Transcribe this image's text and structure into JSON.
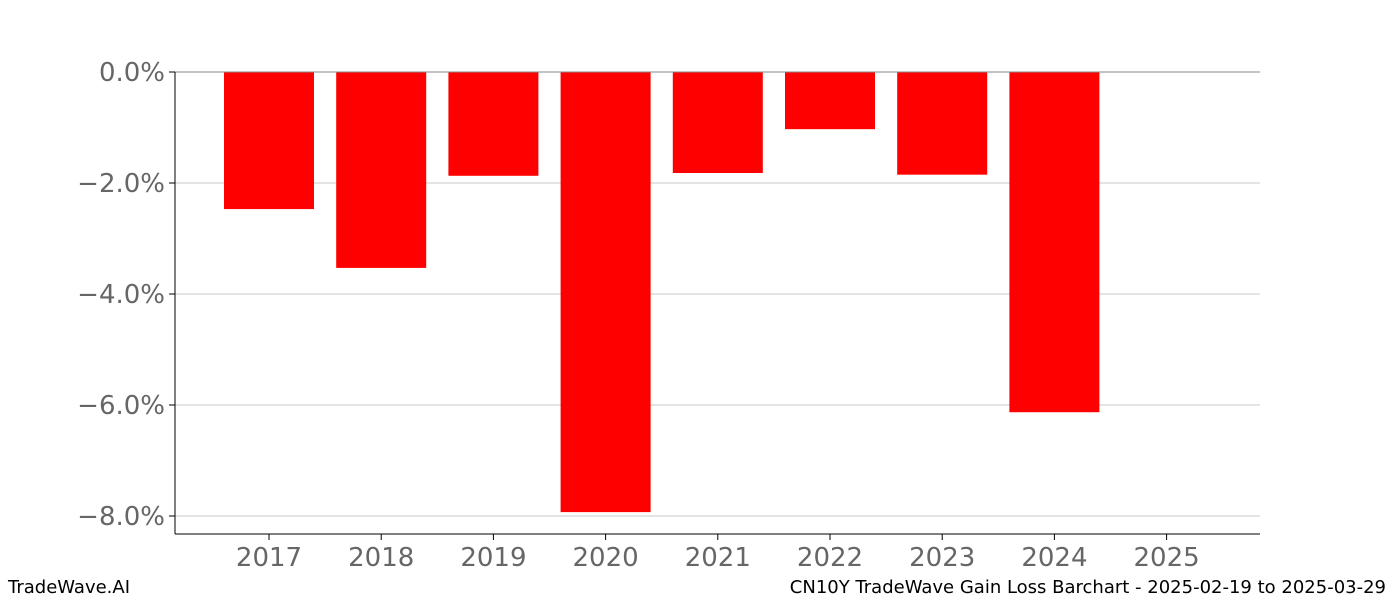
{
  "footer": {
    "brand": "TradeWave.AI",
    "caption": "CN10Y TradeWave Gain Loss Barchart - 2025-02-19 to 2025-03-29"
  },
  "chart_data": {
    "type": "bar",
    "title": "",
    "xlabel": "",
    "ylabel": "",
    "categories": [
      "2017",
      "2018",
      "2019",
      "2020",
      "2021",
      "2022",
      "2023",
      "2024",
      "2025"
    ],
    "values": [
      -2.47,
      -3.53,
      -1.87,
      -7.93,
      -1.82,
      -1.03,
      -1.85,
      -6.13,
      null
    ],
    "y_ticks": [
      0,
      -2,
      -4,
      -6,
      -8
    ],
    "y_tick_labels": [
      "0.0%",
      "−2.0%",
      "−4.0%",
      "−6.0%",
      "−8.0%"
    ],
    "ylim": [
      -8.3,
      0
    ],
    "grid": "horizontal",
    "legend": "none",
    "colors": {
      "bar": "#ff0000",
      "grid": "#c8c8c8",
      "tick_text": "#666666",
      "axis": "#000000"
    }
  }
}
